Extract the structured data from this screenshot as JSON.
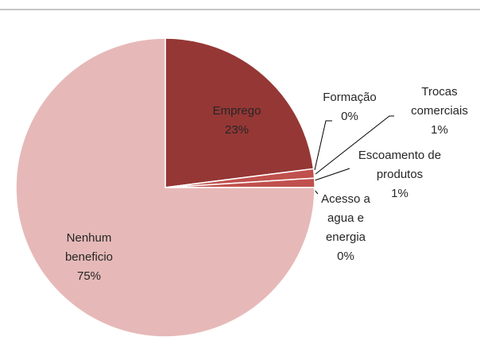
{
  "chart_data": {
    "type": "pie",
    "categories": [
      "Emprego",
      "Formação",
      "Trocas comerciais",
      "Escoamento de produtos",
      "Acesso a agua e energia",
      "Nenhum beneficio"
    ],
    "values": [
      23,
      0,
      1,
      1,
      0,
      75
    ],
    "value_labels": [
      "23%",
      "0%",
      "1%",
      "1%",
      "0%",
      "75%"
    ],
    "colors": [
      "#953735",
      "#c0504d",
      "#c0504d",
      "#c0504d",
      "#c0504d",
      "#e6b9b8"
    ]
  }
}
